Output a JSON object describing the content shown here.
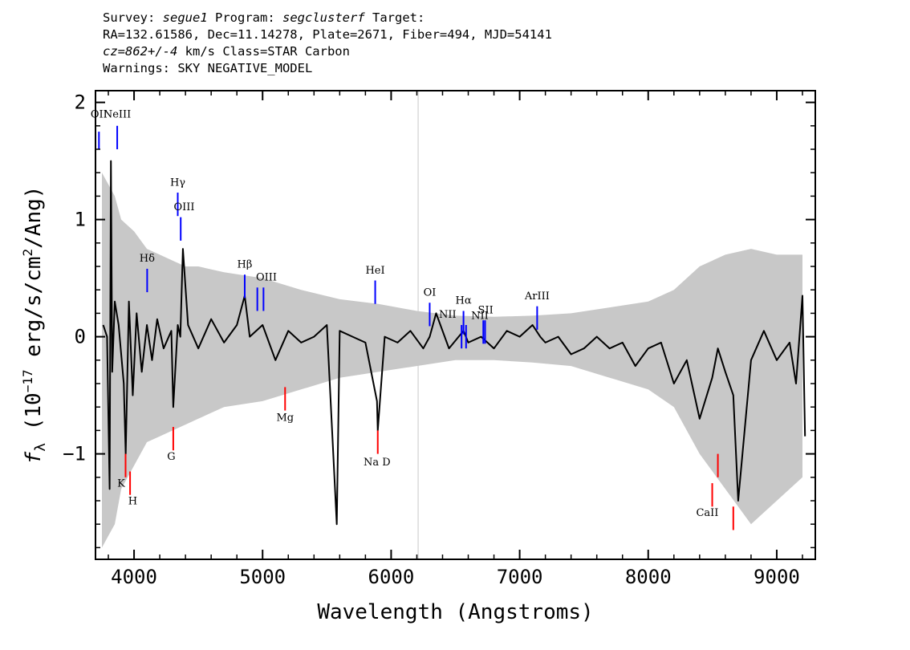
{
  "header": {
    "survey_label": "Survey:",
    "survey": "segue1",
    "program_label": "Program:",
    "program": "segclusterf",
    "target_label": "Target:",
    "line2": "RA=132.61586, Dec=11.14278, Plate=2671, Fiber=494, MJD=54141",
    "cz_label": "cz=862+/-4",
    "line3_rest": " km/s Class=STAR Carbon",
    "line4": "Warnings: SKY NEGATIVE_MODEL"
  },
  "chart_data": {
    "type": "line",
    "xlabel": "Wavelength (Angstroms)",
    "ylabel": "f_λ (10^-17 erg/s/cm^2/Ang)",
    "xlim": [
      3700,
      9300
    ],
    "ylim": [
      -1.9,
      2.1
    ],
    "x_ticks": [
      4000,
      5000,
      6000,
      7000,
      8000,
      9000
    ],
    "y_ticks": [
      -1,
      0,
      1,
      2
    ],
    "x_tick_labels": [
      "4000",
      "5000",
      "6000",
      "7000",
      "8000",
      "9000"
    ],
    "y_tick_labels": [
      "−1",
      "0",
      "1",
      "2"
    ],
    "vertical_marker_x": 6210,
    "series": [
      {
        "style": "noise-envelope",
        "color": "#c8c8c8",
        "x": [
          3750,
          3800,
          3850,
          3900,
          4000,
          4100,
          4200,
          4300,
          4400,
          4500,
          4700,
          5000,
          5300,
          5600,
          5900,
          6200,
          6500,
          6800,
          7100,
          7400,
          7700,
          8000,
          8200,
          8400,
          8600,
          8800,
          9000,
          9200
        ],
        "upper": [
          1.4,
          1.3,
          1.2,
          1.0,
          0.9,
          0.75,
          0.7,
          0.65,
          0.6,
          0.6,
          0.55,
          0.5,
          0.4,
          0.32,
          0.28,
          0.22,
          0.18,
          0.17,
          0.18,
          0.2,
          0.25,
          0.3,
          0.4,
          0.6,
          0.7,
          0.75,
          0.7,
          0.7
        ],
        "lower": [
          -1.8,
          -1.7,
          -1.6,
          -1.3,
          -1.1,
          -0.9,
          -0.85,
          -0.8,
          -0.75,
          -0.7,
          -0.6,
          -0.55,
          -0.45,
          -0.35,
          -0.3,
          -0.25,
          -0.2,
          -0.2,
          -0.22,
          -0.25,
          -0.35,
          -0.45,
          -0.6,
          -1.0,
          -1.3,
          -1.6,
          -1.4,
          -1.2
        ]
      },
      {
        "style": "flux",
        "color": "#000000",
        "x": [
          3760,
          3790,
          3810,
          3820,
          3830,
          3850,
          3880,
          3920,
          3935,
          3960,
          3990,
          4020,
          4060,
          4100,
          4140,
          4180,
          4230,
          4290,
          4305,
          4340,
          4360,
          4380,
          4420,
          4500,
          4600,
          4700,
          4800,
          4861,
          4900,
          5000,
          5100,
          5200,
          5300,
          5400,
          5500,
          5577,
          5600,
          5700,
          5800,
          5890,
          5896,
          5950,
          6050,
          6150,
          6250,
          6300,
          6350,
          6450,
          6563,
          6600,
          6700,
          6800,
          6900,
          7000,
          7100,
          7160,
          7200,
          7300,
          7400,
          7500,
          7600,
          7700,
          7800,
          7900,
          8000,
          8100,
          8200,
          8300,
          8400,
          8498,
          8542,
          8600,
          8662,
          8700,
          8800,
          8900,
          9000,
          9100,
          9150,
          9200,
          9220
        ],
        "y": [
          0.1,
          0.0,
          -1.3,
          1.5,
          -0.3,
          0.3,
          0.1,
          -0.4,
          -1.0,
          0.3,
          -0.5,
          0.2,
          -0.3,
          0.1,
          -0.2,
          0.15,
          -0.1,
          0.05,
          -0.6,
          0.1,
          0.0,
          0.75,
          0.1,
          -0.1,
          0.15,
          -0.05,
          0.1,
          0.35,
          0.0,
          0.1,
          -0.2,
          0.05,
          -0.05,
          0.0,
          0.1,
          -1.6,
          0.05,
          0.0,
          -0.05,
          -0.55,
          -0.8,
          0.0,
          -0.05,
          0.05,
          -0.1,
          0.0,
          0.2,
          -0.1,
          0.05,
          -0.05,
          0.0,
          -0.1,
          0.05,
          0.0,
          0.1,
          0.0,
          -0.05,
          0.0,
          -0.15,
          -0.1,
          0.0,
          -0.1,
          -0.05,
          -0.25,
          -0.1,
          -0.05,
          -0.4,
          -0.2,
          -0.7,
          -0.35,
          -0.1,
          -0.3,
          -0.5,
          -1.4,
          -0.2,
          0.05,
          -0.2,
          -0.05,
          -0.4,
          0.35,
          -0.85
        ]
      }
    ],
    "emission_lines": [
      {
        "label": "OII",
        "x": 3727,
        "y0": 1.6,
        "y1": 1.75
      },
      {
        "label": "NeIII",
        "x": 3869,
        "y0": 1.6,
        "y1": 1.8
      },
      {
        "label": "Hγ",
        "x": 4340,
        "y0": 1.03,
        "y1": 1.23
      },
      {
        "label": "OIII",
        "x": 4363,
        "y0": 0.82,
        "y1": 1.02
      },
      {
        "label": "Hδ",
        "x": 4102,
        "y0": 0.38,
        "y1": 0.58
      },
      {
        "label": "Hβ",
        "x": 4861,
        "y0": 0.33,
        "y1": 0.53
      },
      {
        "label": "OIII",
        "x": 4959,
        "y0": 0.22,
        "y1": 0.42
      },
      {
        "label": "OIII",
        "x": 5007,
        "y0": 0.22,
        "y1": 0.42
      },
      {
        "label": "HeI",
        "x": 5876,
        "y0": 0.28,
        "y1": 0.48
      },
      {
        "label": "OI",
        "x": 6300,
        "y0": 0.09,
        "y1": 0.29
      },
      {
        "label": "NII",
        "x": 6548,
        "y0": -0.1,
        "y1": 0.1
      },
      {
        "label": "Hα",
        "x": 6563,
        "y0": 0.02,
        "y1": 0.22
      },
      {
        "label": "NII",
        "x": 6583,
        "y0": -0.1,
        "y1": 0.1
      },
      {
        "label": "SII",
        "x": 6717,
        "y0": -0.06,
        "y1": 0.14
      },
      {
        "label": "SII",
        "x": 6731,
        "y0": -0.06,
        "y1": 0.14
      },
      {
        "label": "ArIII",
        "x": 7136,
        "y0": 0.06,
        "y1": 0.26
      }
    ],
    "emission_labels": [
      {
        "text": "OII",
        "x": 3727,
        "y": 1.87
      },
      {
        "text": "NeIII",
        "x": 3869,
        "y": 1.87
      },
      {
        "text": "Hγ",
        "x": 4340,
        "y": 1.29
      },
      {
        "text": "OIII",
        "x": 4390,
        "y": 1.08
      },
      {
        "text": "Hδ",
        "x": 4102,
        "y": 0.64
      },
      {
        "text": "Hβ",
        "x": 4861,
        "y": 0.59
      },
      {
        "text": "OIII",
        "x": 5030,
        "y": 0.48
      },
      {
        "text": "HeI",
        "x": 5876,
        "y": 0.54
      },
      {
        "text": "OI",
        "x": 6300,
        "y": 0.35
      },
      {
        "text": "NII",
        "x": 6440,
        "y": 0.16
      },
      {
        "text": "Hα",
        "x": 6563,
        "y": 0.28
      },
      {
        "text": "NII",
        "x": 6690,
        "y": 0.15
      },
      {
        "text": "SII",
        "x": 6735,
        "y": 0.2
      },
      {
        "text": "ArIII",
        "x": 7136,
        "y": 0.32
      }
    ],
    "absorption_lines": [
      {
        "label": "K",
        "x": 3934,
        "y0": -1.0,
        "y1": -1.2
      },
      {
        "label": "H",
        "x": 3969,
        "y0": -1.15,
        "y1": -1.35
      },
      {
        "label": "G",
        "x": 4305,
        "y0": -0.77,
        "y1": -0.97
      },
      {
        "label": "Mg",
        "x": 5175,
        "y0": -0.43,
        "y1": -0.63
      },
      {
        "label": "Na D",
        "x": 5896,
        "y0": -0.8,
        "y1": -1.0
      },
      {
        "label": "CaII",
        "x": 8498,
        "y0": -1.25,
        "y1": -1.45
      },
      {
        "label": "CaII",
        "x": 8542,
        "y0": -1.0,
        "y1": -1.2
      },
      {
        "label": "CaII",
        "x": 8662,
        "y0": -1.45,
        "y1": -1.65
      }
    ],
    "absorption_labels": [
      {
        "text": "K",
        "x": 3900,
        "y": -1.28
      },
      {
        "text": "H",
        "x": 3990,
        "y": -1.43
      },
      {
        "text": "G",
        "x": 4290,
        "y": -1.05
      },
      {
        "text": "Mg",
        "x": 5175,
        "y": -0.72
      },
      {
        "text": "Na D",
        "x": 5890,
        "y": -1.1
      },
      {
        "text": "CaII",
        "x": 8460,
        "y": -1.53
      }
    ]
  }
}
